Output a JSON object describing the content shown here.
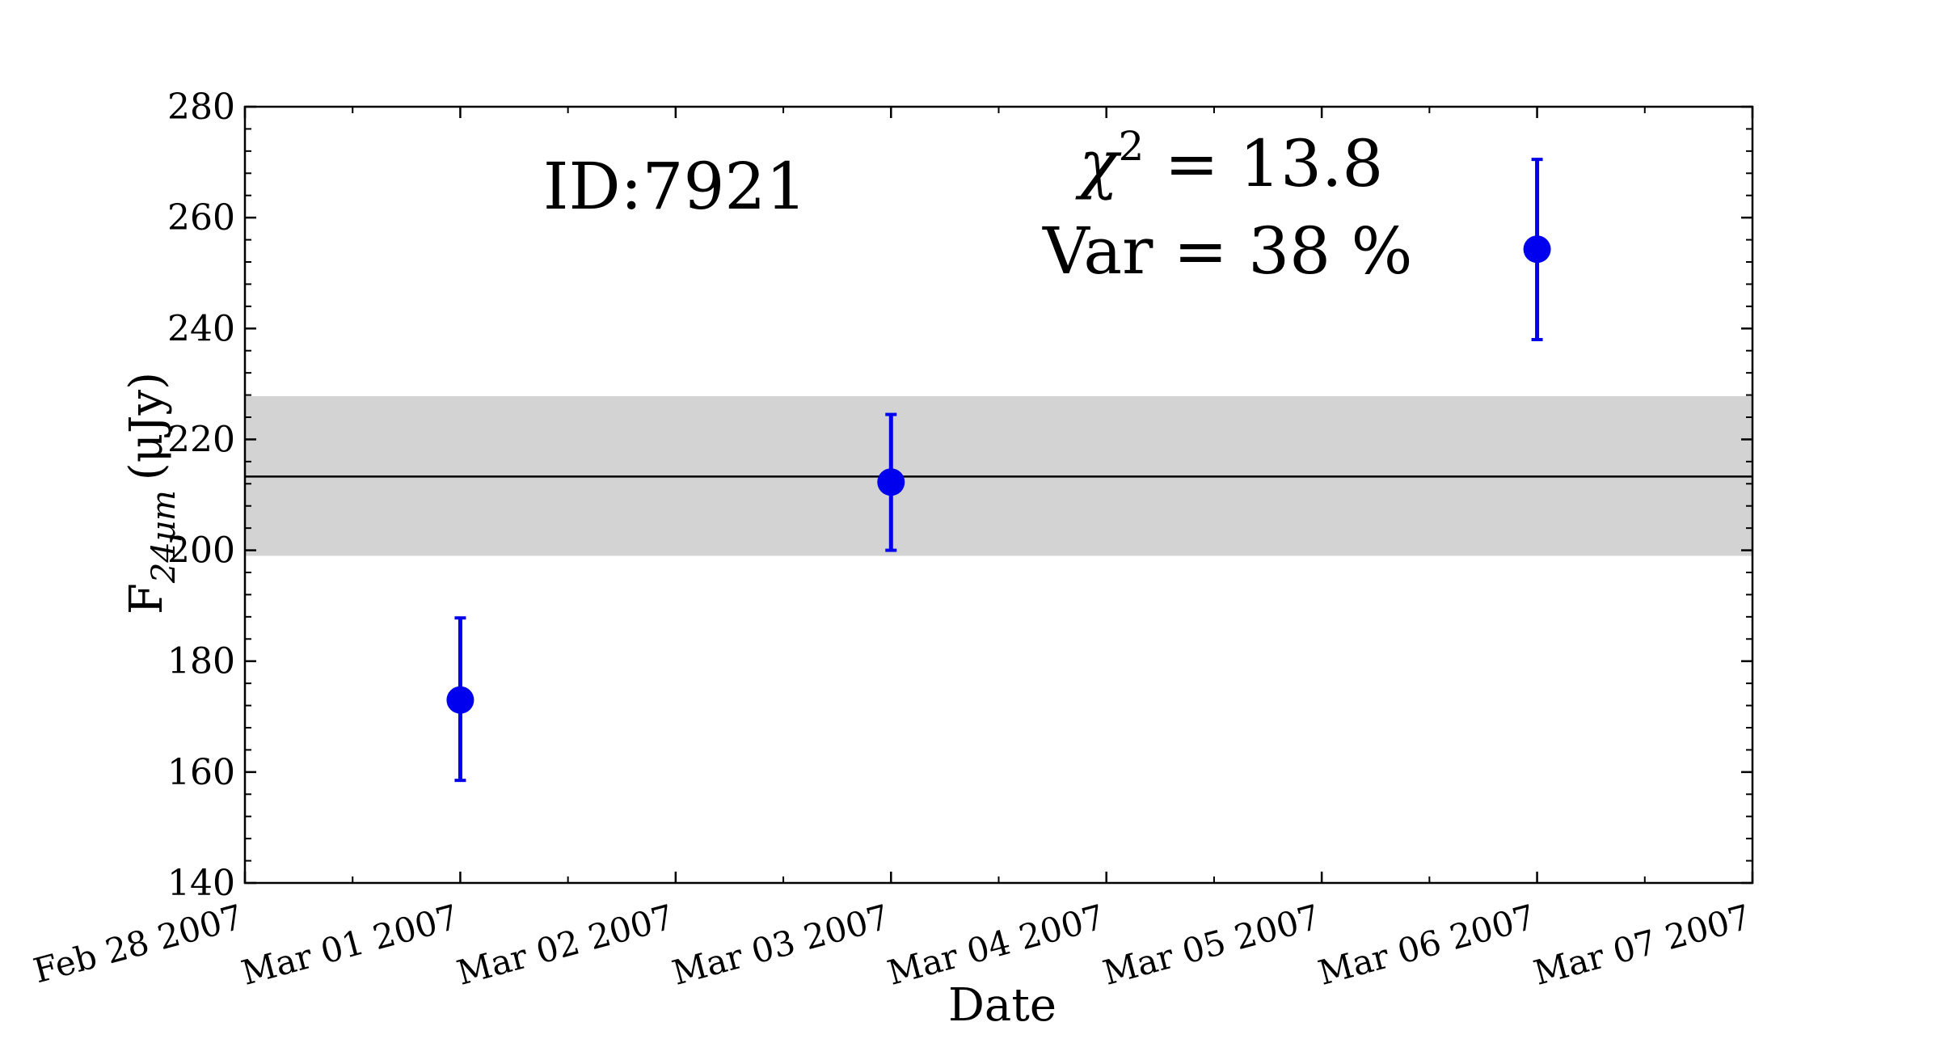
{
  "chart_data": {
    "type": "scatter",
    "xlabel": "Date",
    "ylabel": "F",
    "ylabel_subscript": "24μm",
    "ylabel_unit": "(μJy)",
    "ylim": [
      140,
      280
    ],
    "yticks": [
      140,
      160,
      180,
      200,
      220,
      240,
      260,
      280
    ],
    "xlim": [
      "2007-02-28",
      "2007-03-07"
    ],
    "xticks": [
      {
        "date": "2007-02-28",
        "label": "Feb 28 2007"
      },
      {
        "date": "2007-03-01",
        "label": "Mar 01 2007"
      },
      {
        "date": "2007-03-02",
        "label": "Mar 02 2007"
      },
      {
        "date": "2007-03-03",
        "label": "Mar 03 2007"
      },
      {
        "date": "2007-03-04",
        "label": "Mar 04 2007"
      },
      {
        "date": "2007-03-05",
        "label": "Mar 05 2007"
      },
      {
        "date": "2007-03-06",
        "label": "Mar 06 2007"
      },
      {
        "date": "2007-03-07",
        "label": "Mar 07 2007"
      }
    ],
    "series": [
      {
        "color": "#0000ee",
        "points": [
          {
            "x": "2007-03-01 00:00",
            "y": 173.0,
            "yerr_low": 158.5,
            "yerr_high": 187.8
          },
          {
            "x": "2007-03-03 00:00",
            "y": 212.3,
            "yerr_low": 200.0,
            "yerr_high": 224.5
          },
          {
            "x": "2007-03-06 00:00",
            "y": 254.3,
            "yerr_low": 238.0,
            "yerr_high": 270.5
          }
        ]
      }
    ],
    "mean_line": {
      "y": 213.3,
      "color": "#000000"
    },
    "band": {
      "y_low": 199.0,
      "y_high": 227.8,
      "color": "#d3d3d3"
    },
    "annotations": {
      "id": "ID:7921",
      "chi2_symbol": "χ",
      "chi2_superscript": "2",
      "chi2_value": " = 13.8",
      "var": "Var = 38 %"
    },
    "grid": false
  }
}
